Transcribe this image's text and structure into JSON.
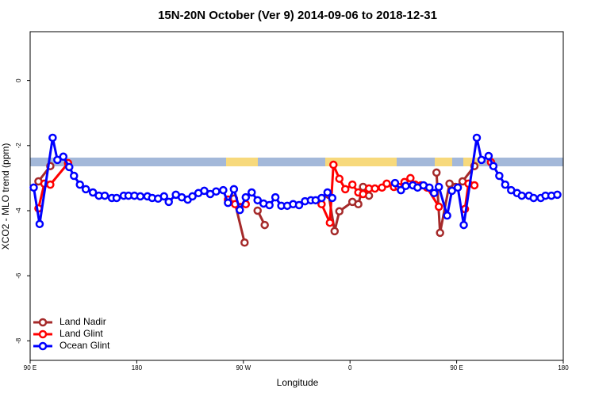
{
  "chart_data": {
    "type": "line",
    "title": "15N-20N October (Ver 9)   2014-09-06 to 2018-12-31",
    "x_label": "Longitude",
    "y_label": "XCO2 - MLO trend (ppm)",
    "xlim": [
      90,
      540
    ],
    "xticks": [
      {
        "value": 90,
        "label": "90 E"
      },
      180,
      {
        "value": 270,
        "label": "90 W"
      },
      {
        "value": 360,
        "label": "0"
      },
      {
        "value": 450,
        "label": "90 E"
      },
      {
        "value": 540,
        "label": "180"
      }
    ],
    "ylim": [
      -8.6,
      1.5
    ],
    "yticks": [
      0,
      -2,
      -4,
      -6,
      -8
    ],
    "legend": "bottom-left",
    "series": [
      {
        "name": "Land Nadir",
        "color": "#a52a2a",
        "x": [
          97,
          107,
          null,
          262,
          271,
          null,
          282,
          288,
          null,
          342,
          347,
          351,
          362,
          367,
          371,
          376,
          null,
          433,
          436,
          444,
          449,
          455,
          465
        ],
        "values": [
          -3.1,
          -2.63,
          null,
          -3.63,
          -4.98,
          null,
          -4.0,
          -4.44,
          null,
          -3.51,
          -4.63,
          -4.02,
          -3.73,
          -3.8,
          -3.27,
          -3.54,
          null,
          -2.83,
          -4.68,
          -3.17,
          -3.27,
          -3.1,
          -2.63
        ]
      },
      {
        "name": "Land Glint",
        "color": "#ff0000",
        "x": [
          97,
          102,
          107,
          122,
          null,
          257,
          263,
          272,
          null,
          336,
          343,
          346,
          351,
          356,
          362,
          367,
          371,
          376,
          381,
          387,
          391,
          397,
          401,
          406,
          411,
          415,
          420,
          425,
          435,
          null,
          457,
          460,
          465,
          null,
          479
        ],
        "values": [
          -3.93,
          -3.17,
          -3.2,
          -2.54,
          null,
          -3.66,
          -3.8,
          -3.8,
          null,
          -3.8,
          -4.37,
          -2.59,
          -3.02,
          -3.34,
          -3.2,
          -3.44,
          -3.49,
          -3.32,
          -3.32,
          -3.29,
          -3.17,
          -3.27,
          -3.27,
          -3.12,
          -3.0,
          -3.2,
          -3.22,
          -3.29,
          -3.88,
          null,
          -3.95,
          -3.17,
          -3.22,
          null,
          -2.51
        ]
      },
      {
        "name": "Ocean Glint",
        "color": "#0000ff",
        "x": [
          93,
          98,
          109,
          113,
          118,
          123,
          127,
          132,
          137,
          143,
          148,
          153,
          159,
          163,
          169,
          173,
          178,
          183,
          189,
          193,
          198,
          203,
          207,
          213,
          218,
          223,
          227,
          232,
          237,
          242,
          247,
          253,
          257,
          262,
          267,
          272,
          277,
          282,
          287,
          292,
          297,
          302,
          307,
          312,
          317,
          322,
          327,
          331,
          336,
          341,
          345,
          null,
          398,
          403,
          407,
          413,
          417,
          422,
          427,
          431,
          435,
          442,
          446,
          451,
          456,
          467,
          471,
          477,
          481,
          486,
          491,
          496,
          501,
          505,
          511,
          515,
          521,
          525,
          530,
          535
        ],
        "values": [
          -3.29,
          -4.41,
          -1.76,
          -2.44,
          -2.34,
          -2.66,
          -2.93,
          -3.2,
          -3.34,
          -3.44,
          -3.54,
          -3.54,
          -3.61,
          -3.61,
          -3.54,
          -3.54,
          -3.54,
          -3.56,
          -3.56,
          -3.61,
          -3.63,
          -3.56,
          -3.73,
          -3.51,
          -3.59,
          -3.66,
          -3.56,
          -3.46,
          -3.39,
          -3.49,
          -3.41,
          -3.37,
          -3.76,
          -3.34,
          -3.98,
          -3.59,
          -3.44,
          -3.68,
          -3.78,
          -3.83,
          -3.59,
          -3.85,
          -3.85,
          -3.8,
          -3.83,
          -3.71,
          -3.68,
          -3.68,
          -3.61,
          -3.44,
          -3.61,
          null,
          -3.15,
          -3.37,
          -3.24,
          -3.22,
          -3.29,
          -3.22,
          -3.29,
          -3.46,
          -3.27,
          -4.15,
          -3.39,
          -3.29,
          -4.44,
          -1.76,
          -2.44,
          -2.32,
          -2.63,
          -2.93,
          -3.2,
          -3.37,
          -3.46,
          -3.54,
          -3.54,
          -3.61,
          -3.61,
          -3.54,
          -3.54,
          -3.51
        ]
      }
    ]
  }
}
